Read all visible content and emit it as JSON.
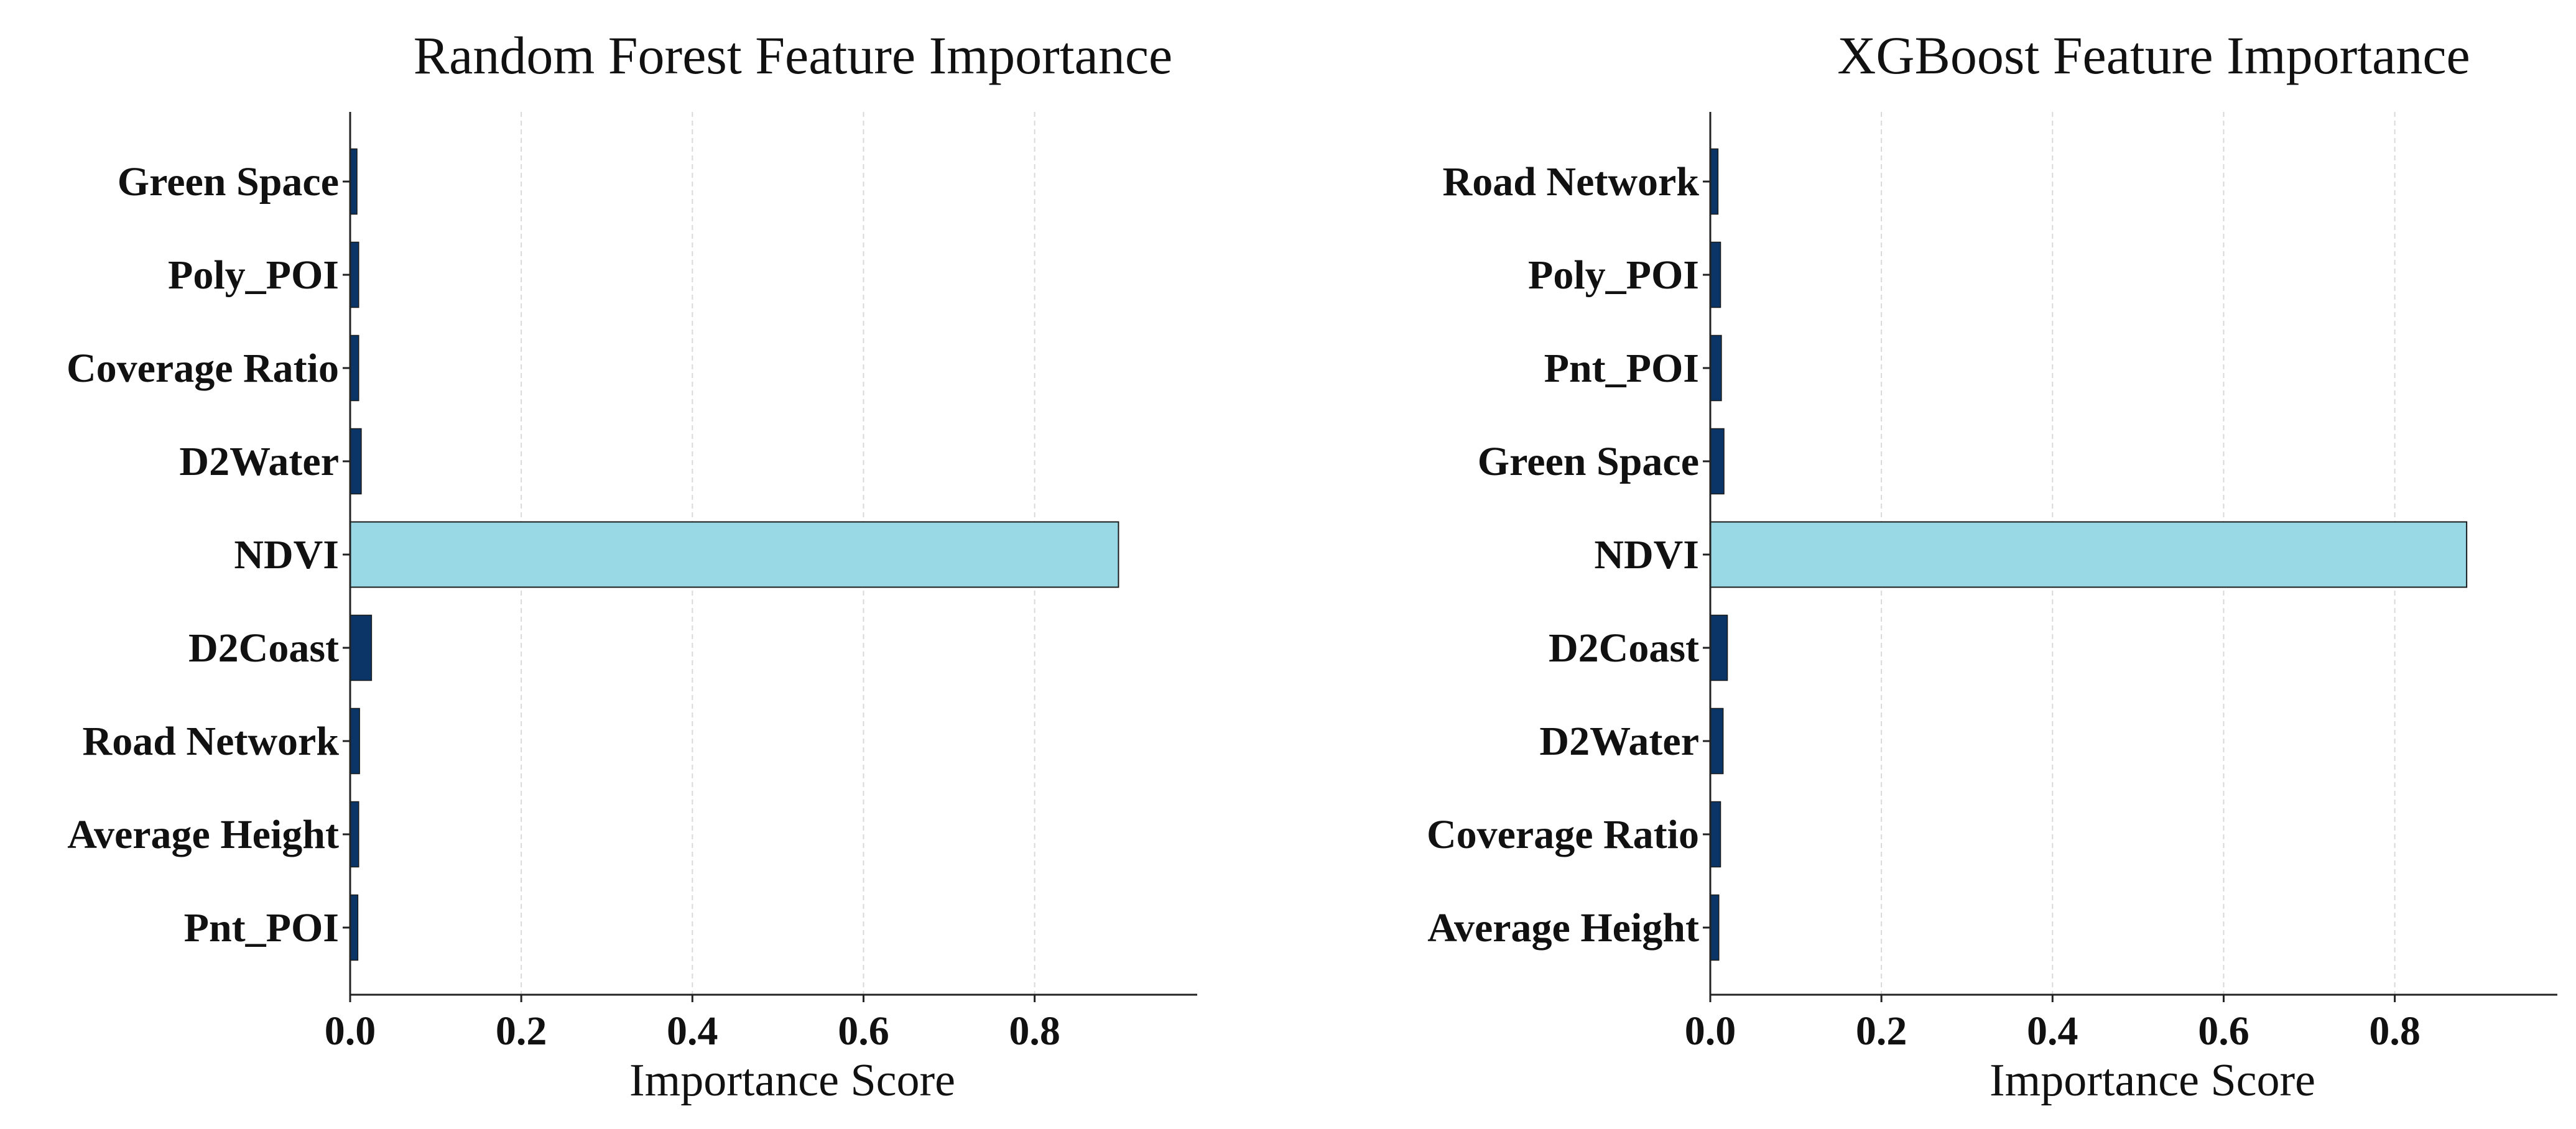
{
  "chart_data": [
    {
      "type": "bar",
      "orientation": "horizontal",
      "title": "Random Forest Feature Importance",
      "xlabel": "Importance Score",
      "ylabel": "",
      "xlim": [
        0,
        0.99
      ],
      "xticks": [
        "0.0",
        "0.2",
        "0.4",
        "0.6",
        "0.8"
      ],
      "grid": "x-dashed",
      "categories": [
        "Green Space",
        "Poly_POI",
        "Coverage Ratio",
        "D2Water",
        "NDVI",
        "D2Coast",
        "Road Network",
        "Average Height",
        "Pnt_POI"
      ],
      "values": [
        0.008,
        0.01,
        0.01,
        0.013,
        0.898,
        0.025,
        0.011,
        0.01,
        0.009
      ],
      "highlight": "NDVI",
      "bar_color": "#0b3467",
      "highlight_color": "#99d9e6"
    },
    {
      "type": "bar",
      "orientation": "horizontal",
      "title": "XGBoost Feature Importance",
      "xlabel": "Importance Score",
      "ylabel": "",
      "xlim": [
        0,
        0.99
      ],
      "xticks": [
        "0.0",
        "0.2",
        "0.4",
        "0.6",
        "0.8"
      ],
      "grid": "x-dashed",
      "categories": [
        "Road Network",
        "Poly_POI",
        "Pnt_POI",
        "Green Space",
        "NDVI",
        "D2Coast",
        "D2Water",
        "Coverage Ratio",
        "Average Height"
      ],
      "values": [
        0.009,
        0.012,
        0.013,
        0.016,
        0.884,
        0.02,
        0.015,
        0.012,
        0.01
      ],
      "highlight": "NDVI",
      "bar_color": "#0b3467",
      "highlight_color": "#99d9e6"
    }
  ]
}
